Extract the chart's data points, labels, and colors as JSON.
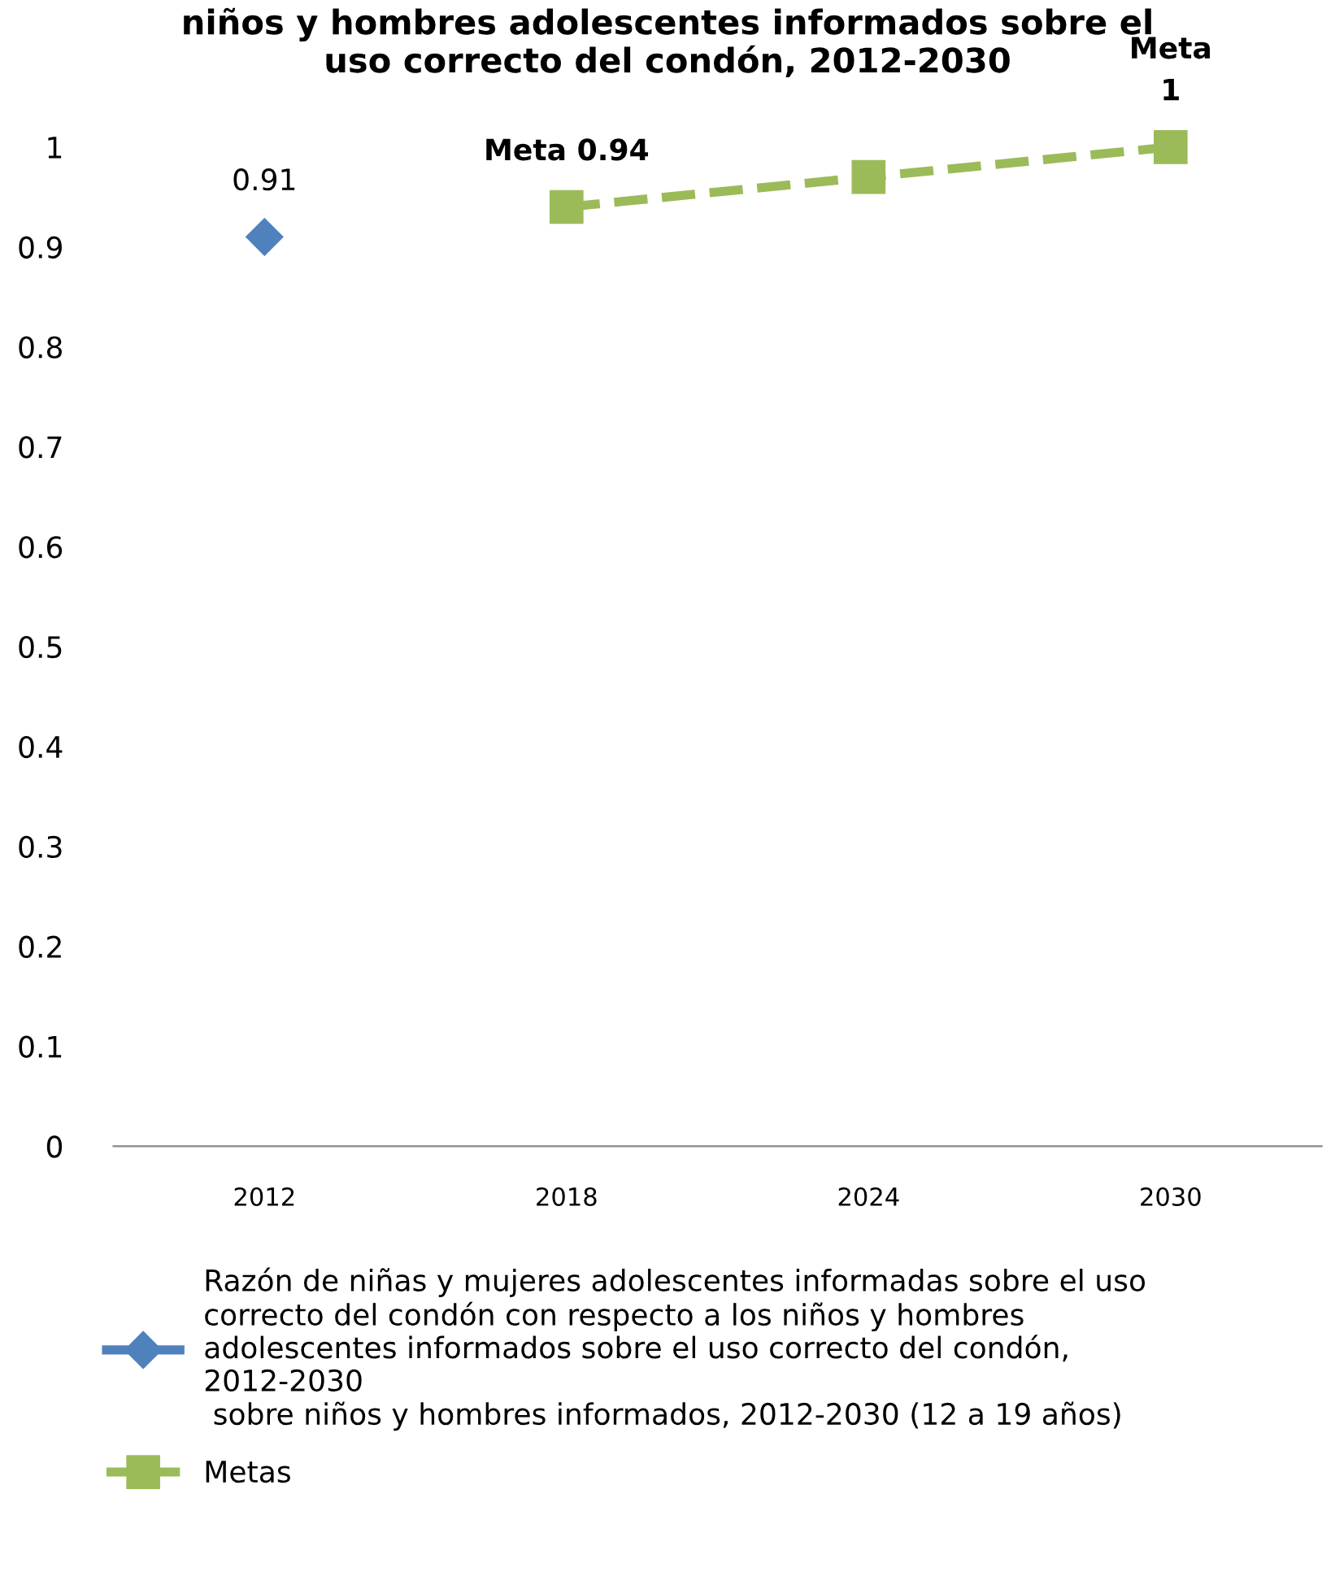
{
  "chart_data": {
    "type": "line",
    "title": "niños y hombres adolescentes informados sobre el\nuso correcto del condón, 2012-2030",
    "categories": [
      "2012",
      "2018",
      "2024",
      "2030"
    ],
    "series": [
      {
        "name": "Razón de niñas y mujeres adolescentes informadas sobre el uso\ncorrecto del condón con respecto a los niños y hombres\nadolescentes informados sobre el uso correcto del condón,\n2012-2030\n sobre niños y hombres informados, 2012-2030 (12 a 19 años)",
        "color": "#4f81bd",
        "values": [
          0.91,
          null,
          null,
          null
        ],
        "marker": "diamond",
        "line_style": "solid",
        "value_labels": [
          "0.91",
          null,
          null,
          null
        ]
      },
      {
        "name": "Metas",
        "color": "#9bbb59",
        "values": [
          null,
          0.94,
          0.97,
          1
        ],
        "marker": "square",
        "line_style": "dashed",
        "value_labels": [
          null,
          "Meta 0.94",
          null,
          "Meta\n1"
        ]
      }
    ],
    "ylim": [
      0,
      1
    ],
    "yticks": [
      0,
      {
        "value": 0.1,
        "label": "0.1"
      },
      {
        "value": 0.2,
        "label": "0.2"
      },
      {
        "value": 0.3,
        "label": "0.3"
      },
      {
        "value": 0.4,
        "label": "0.4"
      },
      {
        "value": 0.5,
        "label": "0.5"
      },
      {
        "value": 0.6,
        "label": "0.6"
      },
      {
        "value": 0.7,
        "label": "0.7"
      },
      {
        "value": 0.8,
        "label": "0.8"
      },
      {
        "value": 0.9,
        "label": "0.9"
      },
      1
    ],
    "grid": false,
    "legend": "bottom"
  }
}
